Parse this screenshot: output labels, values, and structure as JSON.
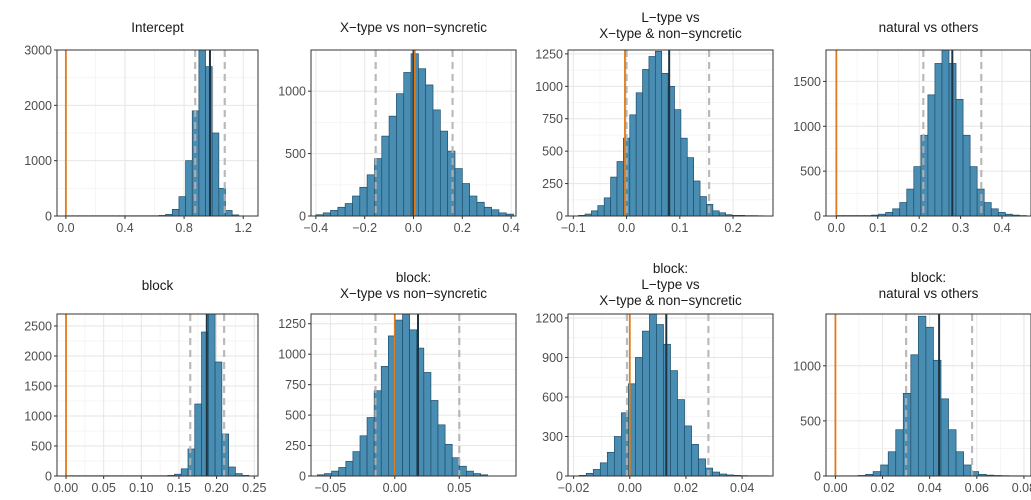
{
  "colors": {
    "bar_fill": "#4a8db3",
    "bar_stroke": "#1e4f6b",
    "zero_line": "#e07b1a",
    "mean_line": "#1f3340",
    "ci_line": "#b3b3b3",
    "grid_major": "#e6e6e6",
    "grid_minor": "#f3f3f3",
    "panel_border": "#333333"
  },
  "chart_data": [
    {
      "type": "bar",
      "title": [
        "Intercept"
      ],
      "xlim": [
        -0.06,
        1.3
      ],
      "ylim": [
        0,
        3000
      ],
      "xticks": [
        0.0,
        0.4,
        0.8,
        1.2
      ],
      "xtick_labels": [
        "0.0",
        "0.4",
        "0.8",
        "1.2"
      ],
      "yticks": [
        0,
        1000,
        2000,
        3000
      ],
      "ytick_labels": [
        "0",
        "1000",
        "2000",
        "3000"
      ],
      "bin_start": 0.0,
      "bin_width": 0.045,
      "counts": [
        5,
        5,
        5,
        5,
        5,
        5,
        5,
        5,
        5,
        5,
        5,
        5,
        5,
        5,
        10,
        30,
        120,
        350,
        1000,
        1900,
        3000,
        2700,
        1500,
        500,
        100,
        20
      ],
      "mean": 0.975,
      "ci": [
        0.875,
        1.075
      ],
      "zero": 0.0
    },
    {
      "type": "bar",
      "title": [
        "X−type vs non−syncretic"
      ],
      "xlim": [
        -0.42,
        0.42
      ],
      "ylim": [
        0,
        1330
      ],
      "xticks": [
        -0.4,
        -0.2,
        0.0,
        0.2,
        0.4
      ],
      "xtick_labels": [
        "−0.4",
        "−0.2",
        "0.0",
        "0.2",
        "0.4"
      ],
      "yticks": [
        0,
        500,
        1000
      ],
      "ytick_labels": [
        "0",
        "500",
        "1000"
      ],
      "bin_start": -0.4,
      "bin_width": 0.03,
      "counts": [
        10,
        25,
        45,
        70,
        100,
        160,
        230,
        330,
        460,
        640,
        800,
        980,
        1150,
        1300,
        1180,
        1050,
        850,
        680,
        520,
        380,
        260,
        160,
        110,
        70,
        50,
        25,
        15
      ],
      "mean": 0.0,
      "ci": [
        -0.155,
        0.16
      ],
      "zero": 0.005
    },
    {
      "type": "bar",
      "title": [
        "L−type vs",
        "X−type & non−syncretic"
      ],
      "xlim": [
        -0.11,
        0.275
      ],
      "ylim": [
        0,
        1280
      ],
      "xticks": [
        -0.1,
        0.0,
        0.1,
        0.2
      ],
      "xtick_labels": [
        "−0.1",
        "0.0",
        "0.1",
        "0.2"
      ],
      "yticks": [
        0,
        250,
        500,
        750,
        1000,
        1250
      ],
      "ytick_labels": [
        "0",
        "250",
        "500",
        "750",
        "1000",
        "1250"
      ],
      "bin_start": -0.09,
      "bin_width": 0.012,
      "counts": [
        5,
        15,
        40,
        80,
        140,
        300,
        420,
        600,
        780,
        950,
        1130,
        1230,
        1270,
        1100,
        1000,
        820,
        600,
        450,
        270,
        150,
        90,
        40,
        25,
        10,
        5,
        5,
        3,
        3,
        2
      ],
      "mean": 0.08,
      "ci": [
        0.0,
        0.155
      ],
      "zero": -0.003
    },
    {
      "type": "bar",
      "title": [
        "natural vs others"
      ],
      "xlim": [
        -0.025,
        0.47
      ],
      "ylim": [
        0,
        1850
      ],
      "xticks": [
        0.0,
        0.1,
        0.2,
        0.3,
        0.4
      ],
      "xtick_labels": [
        "0.0",
        "0.1",
        "0.2",
        "0.3",
        "0.4"
      ],
      "yticks": [
        0,
        500,
        1000,
        1500
      ],
      "ytick_labels": [
        "0",
        "500",
        "1000",
        "1500"
      ],
      "bin_start": 0.0,
      "bin_width": 0.017,
      "counts": [
        5,
        5,
        5,
        5,
        5,
        10,
        20,
        40,
        80,
        150,
        300,
        550,
        900,
        1350,
        1700,
        1850,
        1700,
        1300,
        900,
        550,
        300,
        150,
        80,
        40,
        20,
        10,
        5
      ],
      "mean": 0.28,
      "ci": [
        0.21,
        0.35
      ],
      "zero": 0.0
    },
    {
      "type": "bar",
      "title": [
        "block"
      ],
      "xlim": [
        -0.012,
        0.255
      ],
      "ylim": [
        0,
        2700
      ],
      "xticks": [
        0.0,
        0.05,
        0.1,
        0.15,
        0.2,
        0.25
      ],
      "xtick_labels": [
        "0.00",
        "0.05",
        "0.10",
        "0.15",
        "0.20",
        "0.25"
      ],
      "yticks": [
        0,
        500,
        1000,
        1500,
        2000,
        2500
      ],
      "ytick_labels": [
        "0",
        "500",
        "1000",
        "1500",
        "2000",
        "2500"
      ],
      "bin_start": 0.0,
      "bin_width": 0.009,
      "counts": [
        5,
        5,
        5,
        5,
        5,
        5,
        5,
        5,
        5,
        5,
        5,
        5,
        5,
        5,
        5,
        10,
        30,
        120,
        450,
        1200,
        2400,
        2700,
        1900,
        700,
        150,
        40,
        10
      ],
      "mean": 0.187,
      "ci": [
        0.165,
        0.21
      ],
      "zero": 0.0
    },
    {
      "type": "bar",
      "title": [
        "block:",
        "X−type vs non−syncretic"
      ],
      "xlim": [
        -0.065,
        0.094
      ],
      "ylim": [
        0,
        1330
      ],
      "xticks": [
        -0.05,
        0.0,
        0.05
      ],
      "xtick_labels": [
        "−0.05",
        "0.00",
        "0.05"
      ],
      "yticks": [
        0,
        250,
        500,
        750,
        1000,
        1250
      ],
      "ytick_labels": [
        "0",
        "250",
        "500",
        "750",
        "1000",
        "1250"
      ],
      "bin_start": -0.06,
      "bin_width": 0.0055,
      "counts": [
        10,
        20,
        40,
        70,
        120,
        200,
        330,
        480,
        700,
        900,
        1150,
        1280,
        1330,
        1200,
        1050,
        850,
        620,
        420,
        260,
        150,
        80,
        40,
        20,
        10
      ],
      "mean": 0.018,
      "ci": [
        -0.015,
        0.05
      ],
      "zero": 0.0
    },
    {
      "type": "bar",
      "title": [
        "block:",
        "L−type vs",
        "X−type & non−syncretic"
      ],
      "xlim": [
        -0.022,
        0.051
      ],
      "ylim": [
        0,
        1230
      ],
      "xticks": [
        -0.02,
        0.0,
        0.02,
        0.04
      ],
      "xtick_labels": [
        "−0.02",
        "0.00",
        "0.02",
        "0.04"
      ],
      "yticks": [
        0,
        300,
        600,
        900,
        1200
      ],
      "ytick_labels": [
        "0",
        "300",
        "600",
        "900",
        "1200"
      ],
      "bin_start": -0.018,
      "bin_width": 0.0025,
      "counts": [
        5,
        20,
        50,
        100,
        180,
        300,
        480,
        700,
        900,
        1100,
        1230,
        1150,
        1000,
        800,
        580,
        380,
        240,
        130,
        60,
        30,
        15,
        8,
        5,
        3,
        2,
        2,
        2
      ],
      "mean": 0.013,
      "ci": [
        -0.001,
        0.028
      ],
      "zero": 0.0
    },
    {
      "type": "bar",
      "title": [
        "block:",
        "natural vs others"
      ],
      "xlim": [
        -0.004,
        0.083
      ],
      "ylim": [
        0,
        1470
      ],
      "xticks": [
        0.0,
        0.02,
        0.04,
        0.06,
        0.08
      ],
      "xtick_labels": [
        "0.00",
        "0.02",
        "0.04",
        "0.06",
        "0.08"
      ],
      "bin_start": 0.0,
      "bin_width": 0.0032,
      "yticks": [
        0,
        500,
        1000
      ],
      "ytick_labels": [
        "0",
        "500",
        "1000"
      ],
      "counts": [
        2,
        2,
        2,
        5,
        15,
        40,
        100,
        220,
        420,
        750,
        1100,
        1450,
        1350,
        1050,
        700,
        420,
        220,
        100,
        40,
        15,
        8,
        5,
        3,
        2,
        2
      ],
      "mean": 0.044,
      "ci": [
        0.03,
        0.058
      ],
      "zero": 0.0
    }
  ]
}
